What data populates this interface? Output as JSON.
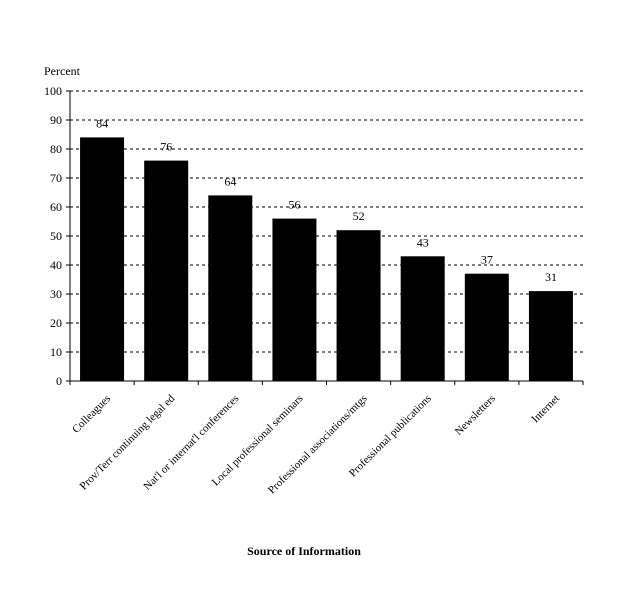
{
  "chart_data": {
    "type": "bar",
    "ylabel": "Percent",
    "xlabel": "Source of Information",
    "ylim": [
      0,
      100
    ],
    "yticks": [
      0,
      10,
      20,
      30,
      40,
      50,
      60,
      70,
      80,
      90,
      100
    ],
    "grid": "dashed-horizontal",
    "bar_color": "#000000",
    "categories": [
      "Colleagues",
      "Prov/Terr continuing legal ed",
      "Nat'l or internat'l conferences",
      "Local professional seminars",
      "Professional associations/mtgs",
      "Professional publications",
      "Newsletters",
      "Internet"
    ],
    "values": [
      84,
      76,
      64,
      56,
      52,
      43,
      37,
      31
    ]
  }
}
